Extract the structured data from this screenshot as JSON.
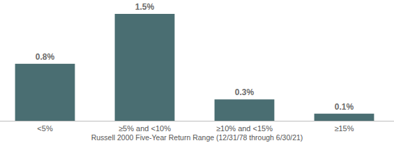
{
  "chart_data": {
    "type": "bar",
    "x_label": "Russell 2000 Five-Year Return Range (12/31/78 through 6/30/21)",
    "categories": [
      "<5%",
      "≥5% and <10%",
      "≥10% and <15%",
      "≥15%"
    ],
    "values": [
      0.8,
      1.5,
      0.3,
      0.1
    ],
    "value_labels": [
      "0.8%",
      "1.5%",
      "0.3%",
      "0.1%"
    ],
    "color": "#4a6e72",
    "ylim": [
      0,
      1.5
    ],
    "data_labels": true,
    "tick_labels": "x",
    "grid": false
  }
}
